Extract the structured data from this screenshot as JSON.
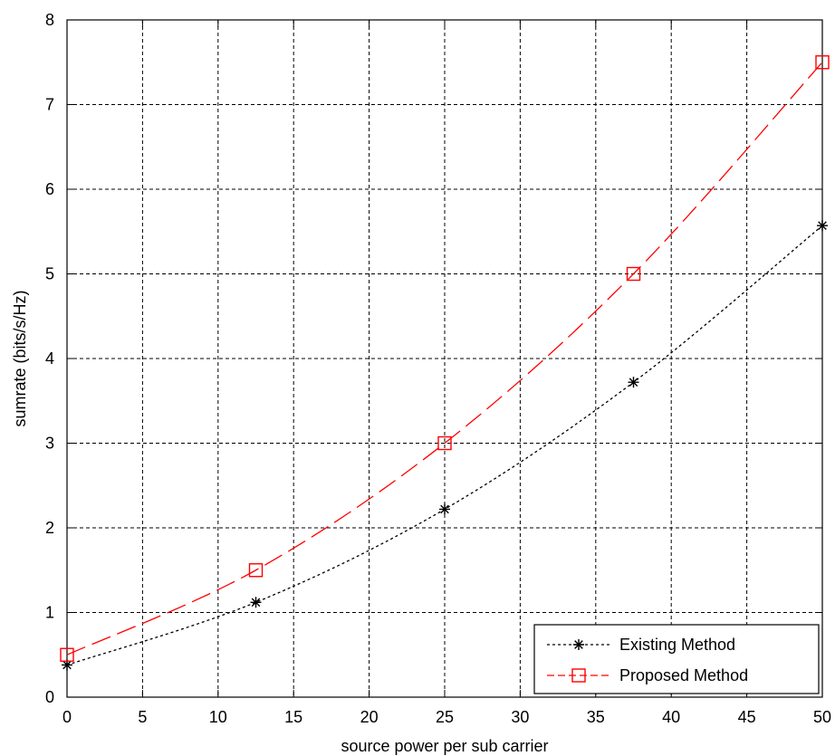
{
  "chart_data": {
    "type": "line",
    "title": "",
    "xlabel": "source power per sub carrier",
    "ylabel": "sumrate (bits/s/Hz)",
    "xlim": [
      0,
      50
    ],
    "ylim": [
      0,
      8
    ],
    "xticks": [
      0,
      5,
      10,
      15,
      20,
      25,
      30,
      35,
      40,
      45,
      50
    ],
    "yticks": [
      0,
      1,
      2,
      3,
      4,
      5,
      6,
      7,
      8
    ],
    "grid": true,
    "legend_position": "bottom-right",
    "series": [
      {
        "name": "Existing Method",
        "color": "#000000",
        "line_style": "dotted",
        "marker": "asterisk",
        "x": [
          0,
          12.5,
          25,
          37.5,
          50
        ],
        "y": [
          0.38,
          1.12,
          2.22,
          3.72,
          5.57
        ]
      },
      {
        "name": "Proposed Method",
        "color": "#ff0000",
        "line_style": "dashed",
        "marker": "square",
        "x": [
          0,
          12.5,
          25,
          37.5,
          50
        ],
        "y": [
          0.5,
          1.5,
          3.0,
          5.0,
          7.5
        ]
      }
    ]
  }
}
